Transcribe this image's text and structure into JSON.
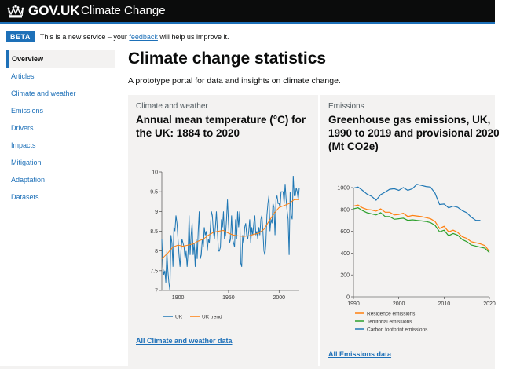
{
  "header": {
    "brand": "GOV.UK",
    "service_name": "Climate Change",
    "icon": "crown-icon",
    "background_color": "#0b0c0c",
    "stripe_color": "#1d70b8"
  },
  "phase_banner": {
    "tag": "BETA",
    "text_before": "This is a new service – your ",
    "link": "feedback",
    "text_after": " will help us improve it."
  },
  "sidebar": {
    "items": [
      {
        "label": "Overview",
        "active": true
      },
      {
        "label": "Articles",
        "active": false
      },
      {
        "label": "Climate and weather",
        "active": false
      },
      {
        "label": "Emissions",
        "active": false
      },
      {
        "label": "Drivers",
        "active": false
      },
      {
        "label": "Impacts",
        "active": false
      },
      {
        "label": "Mitigation",
        "active": false
      },
      {
        "label": "Adaptation",
        "active": false
      },
      {
        "label": "Datasets",
        "active": false
      }
    ]
  },
  "main": {
    "title": "Climate change statistics",
    "lead": "A prototype portal for data and insights on climate change."
  },
  "cards": [
    {
      "kicker": "Climate and weather",
      "title": "Annual mean temperature (°C) for the UK: 1884 to 2020",
      "link": "All Climate and weather data"
    },
    {
      "kicker": "Emissions",
      "title": "Greenhouse gas emissions, UK, 1990 to 2019 and provisional 2020 (Mt CO2e)",
      "link": "All Emissions data"
    }
  ],
  "chart_data": [
    {
      "type": "line",
      "title": "Annual mean temperature (°C) for the UK: 1884 to 2020",
      "xlabel": "",
      "ylabel": "",
      "xlim": [
        1884,
        2020
      ],
      "ylim": [
        7,
        10
      ],
      "x_ticks": [
        "1900",
        "1950",
        "2000"
      ],
      "y_ticks": [
        "7",
        "7.5",
        "8",
        "8.5",
        "9",
        "9.5",
        "10"
      ],
      "grid": false,
      "legend_position": "bottom",
      "series": [
        {
          "name": "UK",
          "color": "#1f77b4",
          "x": [
            1884,
            1885,
            1886,
            1887,
            1888,
            1889,
            1890,
            1891,
            1892,
            1893,
            1894,
            1895,
            1896,
            1897,
            1898,
            1899,
            1900,
            1901,
            1902,
            1903,
            1904,
            1905,
            1906,
            1907,
            1908,
            1909,
            1910,
            1911,
            1912,
            1913,
            1914,
            1915,
            1916,
            1917,
            1918,
            1919,
            1920,
            1921,
            1922,
            1923,
            1924,
            1925,
            1926,
            1927,
            1928,
            1929,
            1930,
            1931,
            1932,
            1933,
            1934,
            1935,
            1936,
            1937,
            1938,
            1939,
            1940,
            1941,
            1942,
            1943,
            1944,
            1945,
            1946,
            1947,
            1948,
            1949,
            1950,
            1951,
            1952,
            1953,
            1954,
            1955,
            1956,
            1957,
            1958,
            1959,
            1960,
            1961,
            1962,
            1963,
            1964,
            1965,
            1966,
            1967,
            1968,
            1969,
            1970,
            1971,
            1972,
            1973,
            1974,
            1975,
            1976,
            1977,
            1978,
            1979,
            1980,
            1981,
            1982,
            1983,
            1984,
            1985,
            1986,
            1987,
            1988,
            1989,
            1990,
            1991,
            1992,
            1993,
            1994,
            1995,
            1996,
            1997,
            1998,
            1999,
            2000,
            2001,
            2002,
            2003,
            2004,
            2005,
            2006,
            2007,
            2008,
            2009,
            2010,
            2011,
            2012,
            2013,
            2014,
            2015,
            2016,
            2017,
            2018,
            2019,
            2020
          ],
          "y": [
            8.3,
            7.6,
            7.4,
            7.5,
            7.2,
            8.0,
            7.5,
            7.2,
            7.0,
            8.4,
            8.2,
            7.6,
            8.6,
            8.5,
            8.9,
            8.7,
            8.3,
            7.9,
            7.6,
            8.0,
            8.3,
            8.2,
            8.1,
            7.8,
            8.0,
            7.6,
            8.0,
            8.9,
            7.9,
            8.4,
            8.7,
            7.9,
            8.2,
            7.6,
            8.3,
            7.8,
            8.5,
            9.0,
            7.8,
            7.9,
            8.3,
            8.1,
            8.6,
            8.4,
            8.5,
            8.0,
            8.3,
            8.2,
            8.6,
            9.0,
            8.9,
            8.5,
            8.3,
            8.6,
            9.0,
            8.5,
            8.0,
            8.0,
            8.1,
            8.8,
            8.6,
            9.0,
            8.3,
            8.4,
            8.8,
            9.3,
            8.7,
            8.2,
            8.3,
            8.9,
            8.3,
            8.2,
            8.1,
            8.8,
            8.3,
            9.0,
            8.6,
            9.0,
            7.7,
            7.6,
            8.4,
            8.2,
            8.6,
            8.7,
            8.4,
            8.3,
            8.5,
            8.8,
            8.2,
            8.6,
            8.4,
            8.7,
            8.9,
            8.4,
            8.5,
            8.3,
            8.6,
            8.4,
            8.8,
            8.9,
            8.5,
            8.0,
            7.9,
            8.2,
            8.9,
            9.2,
            9.4,
            8.5,
            8.8,
            8.7,
            9.2,
            9.1,
            8.4,
            9.3,
            9.4,
            9.2,
            9.2,
            9.1,
            9.5,
            9.5,
            9.5,
            9.2,
            9.7,
            9.3,
            9.0,
            8.8,
            7.9,
            9.5,
            8.9,
            8.8,
            9.9,
            9.4,
            9.4,
            9.6,
            9.5,
            9.3,
            9.6
          ]
        },
        {
          "name": "UK trend",
          "color": "#ff7f0e",
          "x": [
            1884,
            1890,
            1895,
            1900,
            1905,
            1910,
            1915,
            1920,
            1925,
            1930,
            1935,
            1940,
            1945,
            1950,
            1955,
            1960,
            1965,
            1970,
            1975,
            1980,
            1985,
            1990,
            1995,
            2000,
            2005,
            2010,
            2015,
            2020
          ],
          "y": [
            7.8,
            7.95,
            8.1,
            8.15,
            8.12,
            8.15,
            8.18,
            8.25,
            8.3,
            8.4,
            8.47,
            8.5,
            8.52,
            8.45,
            8.4,
            8.38,
            8.37,
            8.38,
            8.42,
            8.45,
            8.55,
            8.75,
            8.95,
            9.1,
            9.15,
            9.2,
            9.3,
            9.3
          ]
        }
      ]
    },
    {
      "type": "line",
      "title": "Greenhouse gas emissions, UK, 1990 to 2019 and provisional 2020 (Mt CO2e)",
      "xlabel": "",
      "ylabel": "",
      "xlim": [
        1990,
        2020
      ],
      "ylim": [
        0,
        1000
      ],
      "x_ticks": [
        "1990",
        "2000",
        "2010",
        "2020"
      ],
      "y_ticks": [
        "0",
        "200",
        "400",
        "600",
        "800",
        "1000"
      ],
      "grid": false,
      "legend_position": "bottom",
      "series": [
        {
          "name": "Residence emissions",
          "color": "#ff7f0e",
          "x": [
            1990,
            1991,
            1992,
            1993,
            1994,
            1995,
            1996,
            1997,
            1998,
            1999,
            2000,
            2001,
            2002,
            2003,
            2004,
            2005,
            2006,
            2007,
            2008,
            2009,
            2010,
            2011,
            2012,
            2013,
            2014,
            2015,
            2016,
            2017,
            2018,
            2019,
            2020
          ],
          "y": [
            830,
            840,
            815,
            800,
            795,
            785,
            805,
            775,
            775,
            750,
            755,
            765,
            735,
            745,
            740,
            735,
            725,
            715,
            690,
            625,
            645,
            595,
            610,
            590,
            550,
            535,
            505,
            495,
            485,
            470,
            415
          ]
        },
        {
          "name": "Territorial emissions",
          "color": "#2ca02c",
          "x": [
            1990,
            1991,
            1992,
            1993,
            1994,
            1995,
            1996,
            1997,
            1998,
            1999,
            2000,
            2001,
            2002,
            2003,
            2004,
            2005,
            2006,
            2007,
            2008,
            2009,
            2010,
            2011,
            2012,
            2013,
            2014,
            2015,
            2016,
            2017,
            2018,
            2019,
            2020
          ],
          "y": [
            805,
            815,
            790,
            770,
            760,
            750,
            770,
            735,
            735,
            710,
            715,
            720,
            700,
            705,
            700,
            695,
            690,
            680,
            655,
            595,
            610,
            560,
            580,
            565,
            525,
            505,
            475,
            465,
            455,
            445,
            405
          ]
        },
        {
          "name": "Carbon footprint emissions",
          "color": "#1f77b4",
          "x": [
            1990,
            1991,
            1992,
            1993,
            1994,
            1995,
            1996,
            1997,
            1998,
            1999,
            2000,
            2001,
            2002,
            2003,
            2004,
            2005,
            2006,
            2007,
            2008,
            2009,
            2010,
            2011,
            2012,
            2013,
            2014,
            2015,
            2016,
            2017,
            2018
          ],
          "y": [
            995,
            1005,
            975,
            940,
            920,
            885,
            935,
            960,
            985,
            990,
            975,
            1000,
            975,
            990,
            1030,
            1020,
            1010,
            1005,
            950,
            845,
            850,
            815,
            830,
            820,
            790,
            770,
            730,
            700,
            700
          ]
        }
      ]
    }
  ]
}
